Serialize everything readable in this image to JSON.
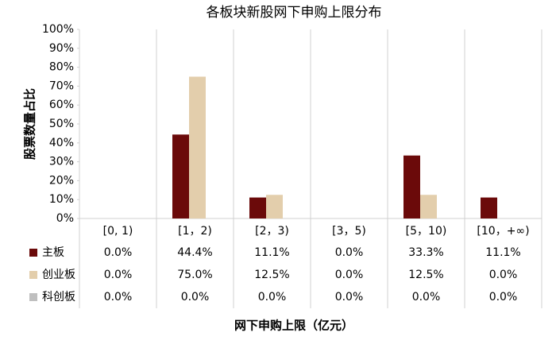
{
  "chart_data": {
    "type": "bar",
    "title": "各板块新股网下申购上限分布",
    "y_label": "股票数量占比",
    "x_label": "网下申购上限（亿元）",
    "categories": [
      "[0, 1)",
      "[1，2)",
      "[2，3)",
      "[3，5)",
      "[5，10)",
      "[10，+∞)"
    ],
    "series": [
      {
        "name": "主板",
        "color": "#6b0a0a",
        "values": [
          0,
          44.4,
          11.1,
          0,
          33.3,
          11.1
        ],
        "value_labels": [
          "0.0%",
          "44.4%",
          "11.1%",
          "0.0%",
          "33.3%",
          "11.1%"
        ]
      },
      {
        "name": "创业板",
        "color": "#e3ceac",
        "values": [
          0,
          75,
          12.5,
          0,
          12.5,
          0
        ],
        "value_labels": [
          "0.0%",
          "75.0%",
          "12.5%",
          "0.0%",
          "12.5%",
          "0.0%"
        ]
      },
      {
        "name": "科创板",
        "color": "#bfbfbf",
        "values": [
          0,
          0,
          0,
          0,
          0,
          0
        ],
        "value_labels": [
          "0.0%",
          "0.0%",
          "0.0%",
          "0.0%",
          "0.0%",
          "0.0%"
        ]
      }
    ],
    "ylim": [
      0,
      100
    ],
    "yticks": [
      {
        "value": 0,
        "label": "0%"
      },
      {
        "value": 10,
        "label": "10%"
      },
      {
        "value": 20,
        "label": "20%"
      },
      {
        "value": 30,
        "label": "30%"
      },
      {
        "value": 40,
        "label": "40%"
      },
      {
        "value": 50,
        "label": "50%"
      },
      {
        "value": 60,
        "label": "60%"
      },
      {
        "value": 70,
        "label": "70%"
      },
      {
        "value": 80,
        "label": "80%"
      },
      {
        "value": 90,
        "label": "90%"
      },
      {
        "value": 100,
        "label": "100%"
      }
    ]
  }
}
